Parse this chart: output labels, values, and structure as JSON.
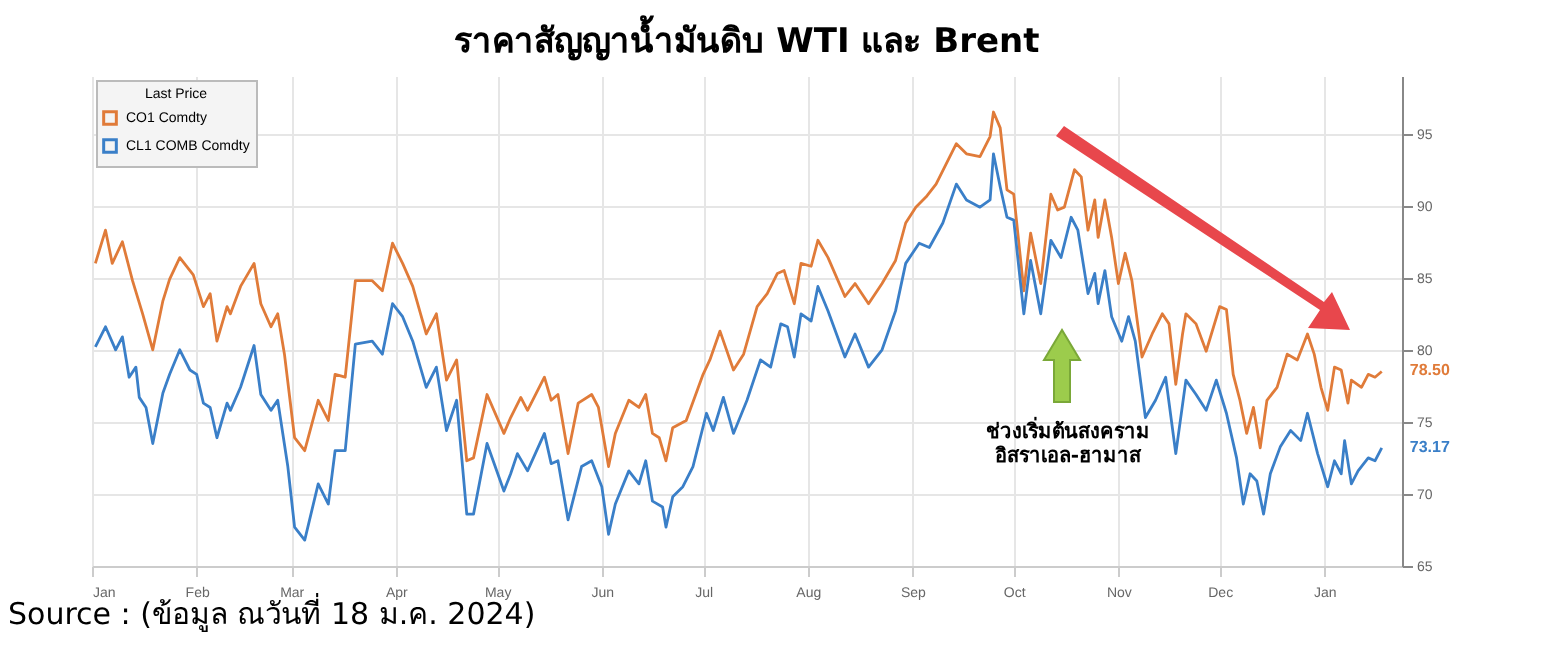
{
  "chart_data": {
    "type": "line",
    "title": "ราคาสัญญาน้ำมันดิบ WTI และ Brent",
    "legend_title": "Last Price",
    "annotations": [
      "ช่วงเริ่มต้นสงคราม\nอิสราเอล-ฮามาส",
      "Source : (ข้อมูล ณวันที่ 18 ม.ค. 2024)",
      {
        "text": "78.50",
        "x": "2024-01-18",
        "y": 78.5
      },
      {
        "text": "73.17",
        "x": "2024-01-18",
        "y": 73.2
      }
    ],
    "xlim": [
      "2023-01-01",
      "2024-01-24"
    ],
    "xticks": [
      {
        "value": "2023-01-01",
        "label": "Jan"
      },
      {
        "value": "2023-02-01",
        "label": "Feb"
      },
      {
        "value": "2023-03-01",
        "label": "Mar"
      },
      {
        "value": "2023-04-01",
        "label": "Apr"
      },
      {
        "value": "2023-05-01",
        "label": "May"
      },
      {
        "value": "2023-06-01",
        "label": "Jun"
      },
      {
        "value": "2023-07-01",
        "label": "Jul"
      },
      {
        "value": "2023-08-01",
        "label": "Aug"
      },
      {
        "value": "2023-09-01",
        "label": "Sep"
      },
      {
        "value": "2023-10-01",
        "label": "Oct"
      },
      {
        "value": "2023-11-01",
        "label": "Nov"
      },
      {
        "value": "2023-12-01",
        "label": "Dec"
      },
      {
        "value": "2024-01-01",
        "label": "Jan"
      }
    ],
    "ylim": [
      65,
      99
    ],
    "yticks": [
      65,
      70,
      75,
      80,
      85,
      90,
      95
    ],
    "grid": true,
    "legend": "top left",
    "series": [
      {
        "name": "CO1 Comdty",
        "color": "#e07b39",
        "x": [
          "2023-01-02",
          "2023-01-05",
          "2023-01-07",
          "2023-01-10",
          "2023-01-13",
          "2023-01-16",
          "2023-01-19",
          "2023-01-22",
          "2023-01-24",
          "2023-01-27",
          "2023-01-31",
          "2023-02-03",
          "2023-02-05",
          "2023-02-07",
          "2023-02-10",
          "2023-02-11",
          "2023-02-14",
          "2023-02-18",
          "2023-02-20",
          "2023-02-23",
          "2023-02-25",
          "2023-02-27",
          "2023-03-02",
          "2023-03-05",
          "2023-03-09",
          "2023-03-12",
          "2023-03-14",
          "2023-03-17",
          "2023-03-20",
          "2023-03-25",
          "2023-03-28",
          "2023-03-31",
          "2023-04-03",
          "2023-04-06",
          "2023-04-10",
          "2023-04-13",
          "2023-04-16",
          "2023-04-19",
          "2023-04-22",
          "2023-04-24",
          "2023-04-28",
          "2023-05-03",
          "2023-05-05",
          "2023-05-08",
          "2023-05-10",
          "2023-05-15",
          "2023-05-17",
          "2023-05-19",
          "2023-05-22",
          "2023-05-25",
          "2023-05-29",
          "2023-05-31",
          "2023-06-03",
          "2023-06-05",
          "2023-06-09",
          "2023-06-12",
          "2023-06-14",
          "2023-06-16",
          "2023-06-18",
          "2023-06-20",
          "2023-06-22",
          "2023-06-26",
          "2023-07-01",
          "2023-07-03",
          "2023-07-06",
          "2023-07-10",
          "2023-07-13",
          "2023-07-17",
          "2023-07-20",
          "2023-07-23",
          "2023-07-25",
          "2023-07-28",
          "2023-07-30",
          "2023-08-02",
          "2023-08-04",
          "2023-08-07",
          "2023-08-12",
          "2023-08-15",
          "2023-08-19",
          "2023-08-23",
          "2023-08-27",
          "2023-08-30",
          "2023-09-02",
          "2023-09-05",
          "2023-09-08",
          "2023-09-11",
          "2023-09-14",
          "2023-09-17",
          "2023-09-21",
          "2023-09-24",
          "2023-09-25",
          "2023-09-27",
          "2023-09-29",
          "2023-10-01",
          "2023-10-04",
          "2023-10-06",
          "2023-10-09",
          "2023-10-12",
          "2023-10-14",
          "2023-10-16",
          "2023-10-19",
          "2023-10-21",
          "2023-10-23",
          "2023-10-25",
          "2023-10-26",
          "2023-10-28",
          "2023-10-30",
          "2023-11-01",
          "2023-11-03",
          "2023-11-05",
          "2023-11-08",
          "2023-11-11",
          "2023-11-14",
          "2023-11-16",
          "2023-11-18",
          "2023-11-20",
          "2023-11-21",
          "2023-11-24",
          "2023-11-27",
          "2023-12-01",
          "2023-12-03",
          "2023-12-05",
          "2023-12-07",
          "2023-12-09",
          "2023-12-11",
          "2023-12-13",
          "2023-12-15",
          "2023-12-18",
          "2023-12-21",
          "2023-12-24",
          "2023-12-27",
          "2023-12-29",
          "2023-12-31",
          "2024-01-02",
          "2024-01-04",
          "2024-01-06",
          "2024-01-08",
          "2024-01-09",
          "2024-01-12",
          "2024-01-14",
          "2024-01-16",
          "2024-01-18"
        ],
        "values": [
          86.0,
          88.3,
          86.0,
          87.5,
          84.8,
          82.5,
          80.0,
          83.4,
          84.9,
          86.4,
          85.2,
          83.0,
          83.9,
          80.6,
          83.0,
          82.5,
          84.4,
          86.0,
          83.2,
          81.6,
          82.5,
          79.7,
          73.9,
          73.0,
          76.5,
          75.1,
          78.3,
          78.1,
          84.8,
          84.8,
          84.1,
          87.4,
          86.0,
          84.4,
          81.1,
          82.5,
          77.9,
          79.3,
          72.3,
          72.5,
          76.9,
          74.2,
          75.3,
          76.7,
          75.8,
          78.1,
          76.5,
          76.9,
          72.8,
          76.3,
          76.9,
          76.0,
          71.9,
          74.2,
          76.5,
          76.0,
          76.9,
          74.2,
          73.9,
          72.3,
          74.6,
          75.1,
          78.3,
          79.3,
          81.3,
          78.6,
          79.7,
          83.0,
          83.9,
          85.3,
          85.5,
          83.2,
          86.0,
          85.8,
          87.6,
          86.4,
          83.7,
          84.6,
          83.2,
          84.6,
          86.2,
          88.8,
          89.9,
          90.6,
          91.5,
          92.9,
          94.3,
          93.6,
          93.4,
          94.8,
          96.5,
          95.4,
          91.1,
          90.8,
          84.1,
          88.1,
          84.6,
          90.8,
          89.7,
          89.9,
          92.5,
          92.0,
          88.3,
          90.4,
          87.8,
          90.4,
          87.8,
          84.6,
          86.7,
          84.8,
          79.5,
          81.1,
          82.5,
          81.8,
          77.6,
          81.1,
          82.5,
          81.8,
          79.9,
          83.0,
          82.8,
          78.3,
          76.5,
          74.2,
          76.0,
          73.2,
          76.5,
          77.4,
          79.7,
          79.3,
          81.1,
          79.7,
          77.4,
          75.8,
          78.8,
          78.6,
          76.3,
          77.9,
          77.4,
          78.3,
          78.1,
          78.5
        ]
      },
      {
        "name": "CL1 COMB Comdty",
        "color": "#3a7fc8",
        "x": [
          "2023-01-02",
          "2023-01-05",
          "2023-01-08",
          "2023-01-10",
          "2023-01-12",
          "2023-01-14",
          "2023-01-15",
          "2023-01-17",
          "2023-01-19",
          "2023-01-22",
          "2023-01-24",
          "2023-01-27",
          "2023-01-30",
          "2023-02-01",
          "2023-02-03",
          "2023-02-05",
          "2023-02-07",
          "2023-02-10",
          "2023-02-11",
          "2023-02-14",
          "2023-02-18",
          "2023-02-20",
          "2023-02-23",
          "2023-02-25",
          "2023-02-28",
          "2023-03-02",
          "2023-03-05",
          "2023-03-09",
          "2023-03-12",
          "2023-03-14",
          "2023-03-17",
          "2023-03-20",
          "2023-03-25",
          "2023-03-28",
          "2023-03-31",
          "2023-04-03",
          "2023-04-06",
          "2023-04-10",
          "2023-04-13",
          "2023-04-16",
          "2023-04-19",
          "2023-04-22",
          "2023-04-24",
          "2023-04-28",
          "2023-05-03",
          "2023-05-05",
          "2023-05-07",
          "2023-05-10",
          "2023-05-15",
          "2023-05-17",
          "2023-05-19",
          "2023-05-22",
          "2023-05-26",
          "2023-05-29",
          "2023-06-01",
          "2023-06-03",
          "2023-06-05",
          "2023-06-09",
          "2023-06-12",
          "2023-06-14",
          "2023-06-16",
          "2023-06-19",
          "2023-06-20",
          "2023-06-22",
          "2023-06-25",
          "2023-06-28",
          "2023-07-02",
          "2023-07-04",
          "2023-07-07",
          "2023-07-10",
          "2023-07-14",
          "2023-07-18",
          "2023-07-21",
          "2023-07-24",
          "2023-07-26",
          "2023-07-28",
          "2023-07-30",
          "2023-08-02",
          "2023-08-04",
          "2023-08-07",
          "2023-08-12",
          "2023-08-15",
          "2023-08-19",
          "2023-08-23",
          "2023-08-27",
          "2023-08-30",
          "2023-09-03",
          "2023-09-06",
          "2023-09-10",
          "2023-09-14",
          "2023-09-17",
          "2023-09-21",
          "2023-09-24",
          "2023-09-25",
          "2023-09-27",
          "2023-09-29",
          "2023-10-01",
          "2023-10-04",
          "2023-10-06",
          "2023-10-09",
          "2023-10-12",
          "2023-10-15",
          "2023-10-18",
          "2023-10-20",
          "2023-10-23",
          "2023-10-25",
          "2023-10-26",
          "2023-10-28",
          "2023-10-30",
          "2023-11-02",
          "2023-11-04",
          "2023-11-06",
          "2023-11-09",
          "2023-11-12",
          "2023-11-15",
          "2023-11-18",
          "2023-11-21",
          "2023-11-24",
          "2023-11-27",
          "2023-11-30",
          "2023-12-03",
          "2023-12-06",
          "2023-12-08",
          "2023-12-10",
          "2023-12-12",
          "2023-12-14",
          "2023-12-16",
          "2023-12-19",
          "2023-12-22",
          "2023-12-25",
          "2023-12-27",
          "2023-12-30",
          "2024-01-02",
          "2024-01-04",
          "2024-01-06",
          "2024-01-07",
          "2024-01-09",
          "2024-01-11",
          "2024-01-14",
          "2024-01-16",
          "2024-01-18"
        ],
        "values": [
          80.2,
          81.6,
          80.0,
          80.9,
          78.1,
          78.8,
          76.7,
          76.0,
          73.5,
          77.0,
          78.3,
          80.0,
          78.6,
          78.3,
          76.3,
          76.0,
          73.9,
          76.3,
          75.8,
          77.4,
          80.3,
          76.9,
          75.8,
          76.5,
          71.9,
          67.7,
          66.8,
          70.7,
          69.3,
          73.0,
          73.0,
          80.4,
          80.6,
          79.7,
          83.2,
          82.3,
          80.6,
          77.4,
          78.8,
          74.4,
          76.5,
          68.6,
          68.6,
          73.5,
          70.2,
          71.4,
          72.8,
          71.6,
          74.2,
          72.1,
          72.3,
          68.2,
          71.9,
          72.3,
          70.5,
          67.2,
          69.3,
          71.6,
          70.7,
          72.3,
          69.5,
          69.1,
          67.7,
          69.8,
          70.5,
          71.9,
          75.6,
          74.4,
          76.7,
          74.2,
          76.5,
          79.3,
          78.8,
          81.8,
          81.6,
          79.5,
          82.5,
          82.0,
          84.4,
          82.7,
          79.5,
          81.1,
          78.8,
          80.0,
          82.7,
          86.0,
          87.4,
          87.1,
          88.8,
          91.5,
          90.4,
          89.9,
          90.4,
          93.6,
          91.3,
          89.2,
          89.0,
          82.5,
          86.2,
          82.5,
          87.6,
          86.4,
          89.2,
          88.3,
          83.9,
          85.3,
          83.2,
          85.5,
          82.3,
          80.6,
          82.3,
          80.6,
          75.3,
          76.5,
          78.1,
          72.8,
          77.9,
          76.9,
          75.8,
          77.9,
          75.6,
          72.5,
          69.3,
          71.4,
          70.9,
          68.6,
          71.4,
          73.3,
          74.4,
          73.7,
          75.6,
          72.8,
          70.5,
          72.3,
          71.4,
          73.7,
          70.7,
          71.6,
          72.5,
          72.3,
          73.2
        ]
      }
    ]
  }
}
